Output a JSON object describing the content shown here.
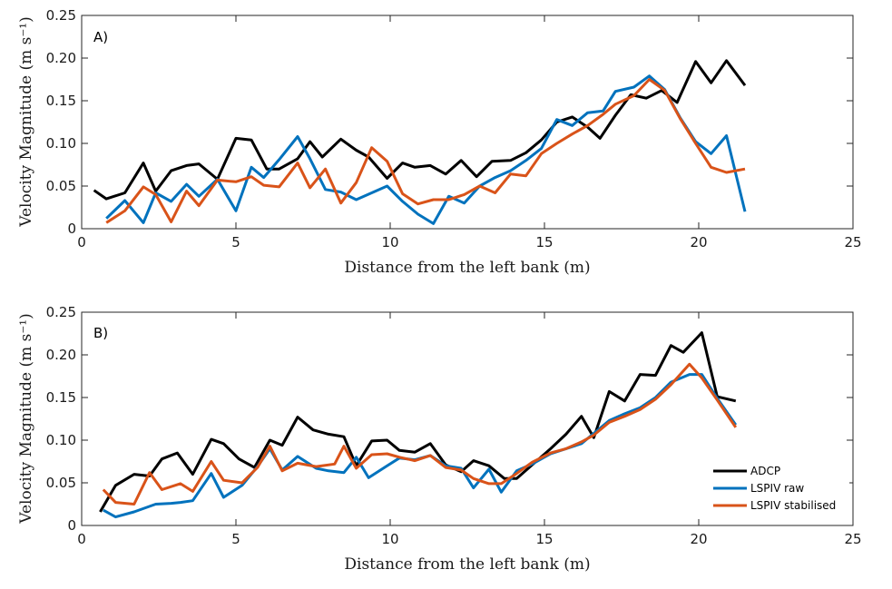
{
  "chart_data": [
    {
      "type": "line",
      "panel_label": "A)",
      "xlabel": "Distance from the left bank (m)",
      "ylabel": "Velocity Magnitude (m s⁻¹)",
      "xlim": [
        0,
        25
      ],
      "ylim": [
        0,
        0.25
      ],
      "xticks": [
        "0",
        "5",
        "10",
        "15",
        "20",
        "25"
      ],
      "yticks": [
        "0",
        "0.05",
        "0.10",
        "0.15",
        "0.20",
        "0.25"
      ],
      "grid": false,
      "legend": null,
      "series": [
        {
          "name": "ADCP",
          "color": "#000000",
          "x": [
            0.4,
            0.8,
            1.4,
            2.0,
            2.4,
            2.9,
            3.4,
            3.8,
            4.4,
            5.0,
            5.5,
            6.0,
            6.4,
            7.0,
            7.4,
            7.8,
            8.4,
            8.9,
            9.3,
            9.9,
            10.4,
            10.8,
            11.3,
            11.8,
            12.3,
            12.8,
            13.3,
            13.9,
            14.4,
            14.9,
            15.4,
            15.9,
            16.4,
            16.8,
            17.3,
            17.8,
            18.3,
            18.8,
            19.3,
            19.9,
            20.4,
            20.9,
            21.5
          ],
          "y": [
            0.045,
            0.035,
            0.042,
            0.077,
            0.044,
            0.068,
            0.074,
            0.076,
            0.058,
            0.106,
            0.104,
            0.07,
            0.07,
            0.082,
            0.102,
            0.084,
            0.105,
            0.092,
            0.084,
            0.059,
            0.077,
            0.072,
            0.074,
            0.064,
            0.08,
            0.061,
            0.079,
            0.08,
            0.089,
            0.104,
            0.125,
            0.131,
            0.119,
            0.106,
            0.133,
            0.157,
            0.153,
            0.162,
            0.148,
            0.196,
            0.171,
            0.197,
            0.168
          ]
        },
        {
          "name": "LSPIV raw",
          "color": "#0072BD",
          "x": [
            0.8,
            1.4,
            2.0,
            2.4,
            2.9,
            3.4,
            3.8,
            4.4,
            5.0,
            5.5,
            5.9,
            6.4,
            7.0,
            7.4,
            7.9,
            8.4,
            8.9,
            9.4,
            9.9,
            10.4,
            10.9,
            11.4,
            11.9,
            12.4,
            12.9,
            13.4,
            13.9,
            14.4,
            14.9,
            15.4,
            15.9,
            16.4,
            16.9,
            17.3,
            17.9,
            18.4,
            18.9,
            19.4,
            19.9,
            20.4,
            20.9,
            21.5
          ],
          "y": [
            0.012,
            0.033,
            0.007,
            0.042,
            0.032,
            0.052,
            0.038,
            0.058,
            0.021,
            0.072,
            0.06,
            0.081,
            0.108,
            0.082,
            0.046,
            0.043,
            0.034,
            0.042,
            0.05,
            0.032,
            0.017,
            0.006,
            0.038,
            0.03,
            0.05,
            0.06,
            0.068,
            0.08,
            0.094,
            0.128,
            0.121,
            0.136,
            0.138,
            0.161,
            0.166,
            0.179,
            0.163,
            0.13,
            0.102,
            0.088,
            0.109,
            0.02
          ]
        },
        {
          "name": "LSPIV stabilised",
          "color": "#D95319",
          "x": [
            0.8,
            1.4,
            2.0,
            2.4,
            2.9,
            3.4,
            3.8,
            4.4,
            5.0,
            5.5,
            5.9,
            6.4,
            7.0,
            7.4,
            7.9,
            8.4,
            8.9,
            9.4,
            9.9,
            10.4,
            10.9,
            11.4,
            11.9,
            12.4,
            12.9,
            13.4,
            13.9,
            14.4,
            14.9,
            15.4,
            15.9,
            16.4,
            16.9,
            17.3,
            17.9,
            18.4,
            18.9,
            19.4,
            19.9,
            20.4,
            20.9,
            21.5
          ],
          "y": [
            0.007,
            0.021,
            0.049,
            0.04,
            0.008,
            0.044,
            0.027,
            0.057,
            0.055,
            0.061,
            0.051,
            0.049,
            0.077,
            0.048,
            0.07,
            0.03,
            0.054,
            0.095,
            0.079,
            0.041,
            0.029,
            0.034,
            0.034,
            0.04,
            0.05,
            0.042,
            0.064,
            0.062,
            0.088,
            0.1,
            0.111,
            0.121,
            0.134,
            0.146,
            0.156,
            0.175,
            0.162,
            0.129,
            0.1,
            0.072,
            0.066,
            0.07
          ]
        }
      ]
    },
    {
      "type": "line",
      "panel_label": "B)",
      "xlabel": "Distance from the left bank (m)",
      "ylabel": "Velocity Magnitude (m s⁻¹)",
      "xlim": [
        0,
        25
      ],
      "ylim": [
        0,
        0.25
      ],
      "xticks": [
        "0",
        "5",
        "10",
        "15",
        "20",
        "25"
      ],
      "yticks": [
        "0",
        "0.05",
        "0.10",
        "0.15",
        "0.20",
        "0.25"
      ],
      "grid": false,
      "legend": "bottom-right",
      "series": [
        {
          "name": "ADCP",
          "color": "#000000",
          "x": [
            0.6,
            1.1,
            1.7,
            2.2,
            2.6,
            3.1,
            3.6,
            4.2,
            4.6,
            5.1,
            5.6,
            6.1,
            6.5,
            7.0,
            7.5,
            8.0,
            8.5,
            8.9,
            9.4,
            9.9,
            10.3,
            10.8,
            11.3,
            11.8,
            12.3,
            12.7,
            13.2,
            13.7,
            14.1,
            14.6,
            15.2,
            15.7,
            16.2,
            16.6,
            17.1,
            17.6,
            18.1,
            18.6,
            19.1,
            19.5,
            20.1,
            20.6,
            21.2
          ],
          "y": [
            0.016,
            0.047,
            0.06,
            0.058,
            0.078,
            0.085,
            0.06,
            0.101,
            0.096,
            0.078,
            0.068,
            0.1,
            0.094,
            0.127,
            0.112,
            0.107,
            0.104,
            0.07,
            0.099,
            0.1,
            0.088,
            0.086,
            0.096,
            0.071,
            0.063,
            0.076,
            0.07,
            0.055,
            0.055,
            0.071,
            0.09,
            0.107,
            0.128,
            0.103,
            0.157,
            0.146,
            0.177,
            0.176,
            0.211,
            0.203,
            0.226,
            0.151,
            0.146
          ]
        },
        {
          "name": "LSPIV raw",
          "color": "#0072BD",
          "x": [
            0.7,
            1.1,
            1.7,
            2.4,
            2.9,
            3.2,
            3.6,
            4.2,
            4.6,
            5.2,
            5.7,
            6.1,
            6.5,
            7.0,
            7.6,
            8.0,
            8.5,
            8.9,
            9.3,
            9.9,
            10.3,
            10.8,
            11.3,
            11.8,
            12.3,
            12.7,
            13.2,
            13.6,
            14.1,
            14.6,
            15.2,
            15.7,
            16.2,
            16.6,
            17.1,
            17.6,
            18.1,
            18.6,
            19.1,
            19.7,
            20.1,
            20.6,
            21.2
          ],
          "y": [
            0.018,
            0.01,
            0.016,
            0.025,
            0.026,
            0.027,
            0.029,
            0.061,
            0.033,
            0.047,
            0.069,
            0.09,
            0.065,
            0.081,
            0.067,
            0.064,
            0.062,
            0.08,
            0.056,
            0.07,
            0.079,
            0.077,
            0.082,
            0.07,
            0.067,
            0.044,
            0.066,
            0.039,
            0.064,
            0.072,
            0.084,
            0.09,
            0.096,
            0.108,
            0.123,
            0.131,
            0.138,
            0.15,
            0.168,
            0.177,
            0.177,
            0.149,
            0.118
          ]
        },
        {
          "name": "LSPIV stabilised",
          "color": "#D95319",
          "x": [
            0.7,
            1.1,
            1.7,
            2.2,
            2.6,
            3.2,
            3.6,
            4.2,
            4.6,
            5.2,
            5.7,
            6.1,
            6.5,
            7.0,
            7.6,
            8.2,
            8.5,
            8.9,
            9.4,
            9.9,
            10.3,
            10.8,
            11.3,
            11.8,
            12.3,
            12.7,
            13.2,
            13.6,
            14.1,
            14.6,
            15.2,
            15.7,
            16.2,
            16.6,
            17.1,
            17.6,
            18.1,
            18.6,
            19.1,
            19.7,
            20.1,
            20.6,
            21.2
          ],
          "y": [
            0.042,
            0.027,
            0.025,
            0.062,
            0.042,
            0.049,
            0.04,
            0.075,
            0.053,
            0.05,
            0.068,
            0.093,
            0.064,
            0.073,
            0.069,
            0.072,
            0.093,
            0.067,
            0.083,
            0.084,
            0.08,
            0.076,
            0.082,
            0.068,
            0.065,
            0.055,
            0.049,
            0.049,
            0.061,
            0.074,
            0.085,
            0.09,
            0.098,
            0.106,
            0.121,
            0.128,
            0.136,
            0.148,
            0.165,
            0.189,
            0.173,
            0.147,
            0.115
          ]
        }
      ]
    }
  ]
}
